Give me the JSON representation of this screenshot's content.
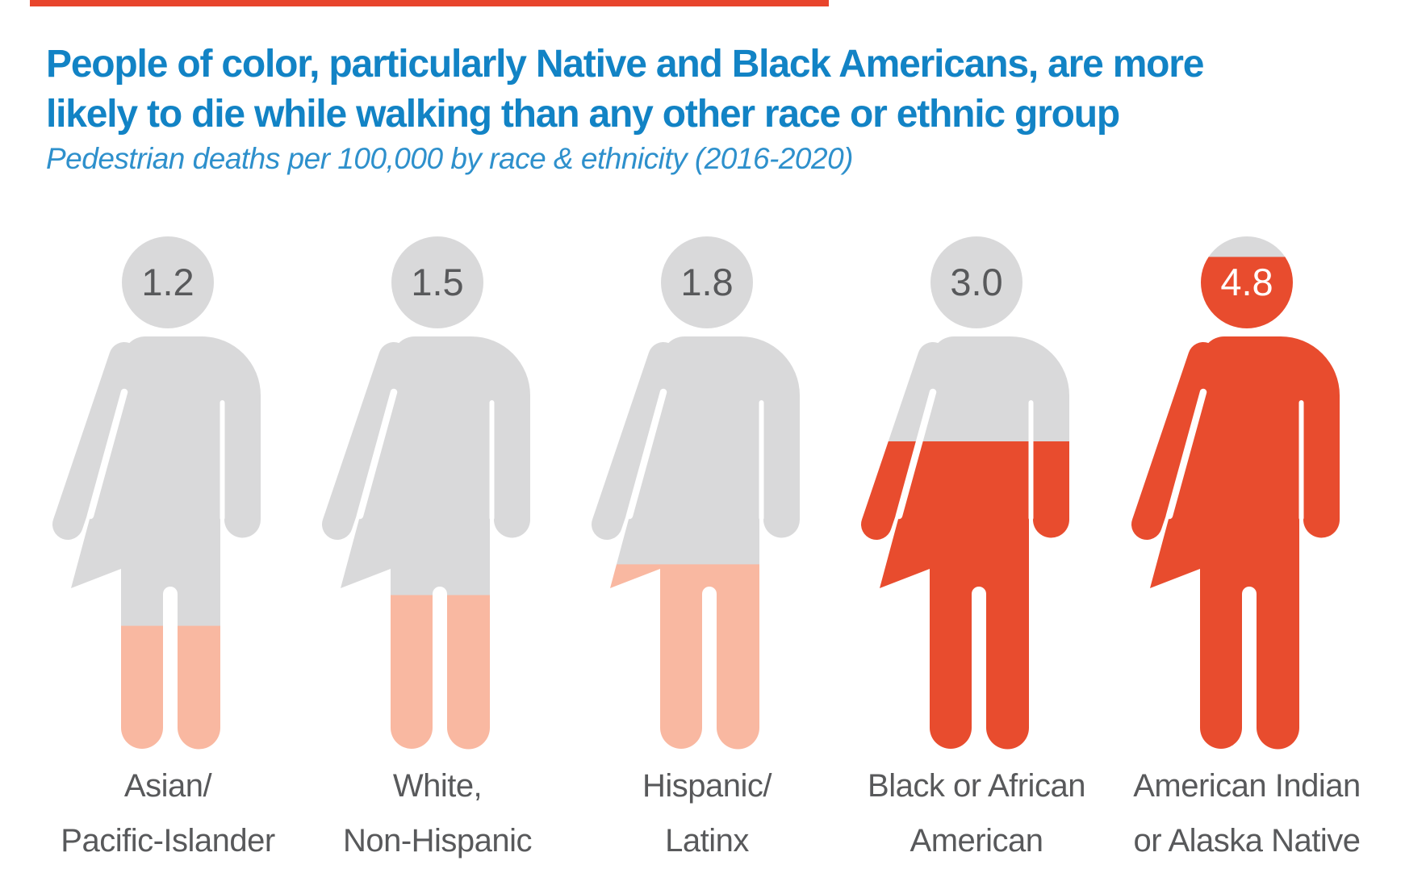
{
  "accent_bar": {
    "color": "#E8452C"
  },
  "header": {
    "title_line1": "People of color, particularly Native and Black Americans, are more",
    "title_line2": "likely to die while walking than any other race or ethnic group",
    "subtitle": "Pedestrian deaths per 100,000 by race & ethnicity (2016-2020)",
    "title_color": "#1283C5",
    "subtitle_color": "#2E90CC"
  },
  "colors": {
    "figure_gray": "#D9D9DA",
    "light_fill": "#F9B8A1",
    "strong_fill": "#E84C2E",
    "label_text": "#58595B",
    "background": "#FFFFFF"
  },
  "figures": [
    {
      "value": 1.2,
      "value_label": "1.2",
      "label_line1": "Asian/",
      "label_line2": "Pacific-Islander",
      "fill_y": 482.6,
      "fill_color": "#F9B8A1",
      "number_color": "#58595B"
    },
    {
      "value": 1.5,
      "value_label": "1.5",
      "label_line1": "White,",
      "label_line2": "Non-Hispanic",
      "fill_y": 444.5,
      "fill_color": "#F9B8A1",
      "number_color": "#58595B"
    },
    {
      "value": 1.8,
      "value_label": "1.8",
      "label_line1": "Hispanic/",
      "label_line2": "Latinx",
      "fill_y": 406.4,
      "fill_color": "#F9B8A1",
      "number_color": "#58595B"
    },
    {
      "value": 3.0,
      "value_label": "3.0",
      "label_line1": "Black or African",
      "label_line2": "American",
      "fill_y": 254.0,
      "fill_color": "#E84C2E",
      "number_color": "#58595B"
    },
    {
      "value": 4.8,
      "value_label": "4.8",
      "label_line1": "American Indian",
      "label_line2": "or Alaska Native",
      "fill_y": 25.4,
      "fill_color": "#E84C2E",
      "number_color": "#FFFFFF"
    }
  ],
  "chart_data": {
    "type": "bar",
    "variant": "pictogram-silhouette-fill",
    "title": "People of color, particularly Native and Black Americans, are more likely to die while walking than any other race or ethnic group",
    "subtitle": "Pedestrian deaths per 100,000 by race & ethnicity (2016-2020)",
    "unit": "pedestrian deaths per 100,000",
    "categories": [
      "Asian/Pacific-Islander",
      "White, Non-Hispanic",
      "Hispanic/Latinx",
      "Black or African American",
      "American Indian or Alaska Native"
    ],
    "values": [
      1.2,
      1.5,
      1.8,
      3.0,
      4.8
    ],
    "scale_max": 5.0,
    "fill_colors": [
      "#F9B8A1",
      "#F9B8A1",
      "#F9B8A1",
      "#E84C2E",
      "#E84C2E"
    ],
    "value_labels_shown_in_heads": true,
    "legend": false,
    "grid": false
  }
}
